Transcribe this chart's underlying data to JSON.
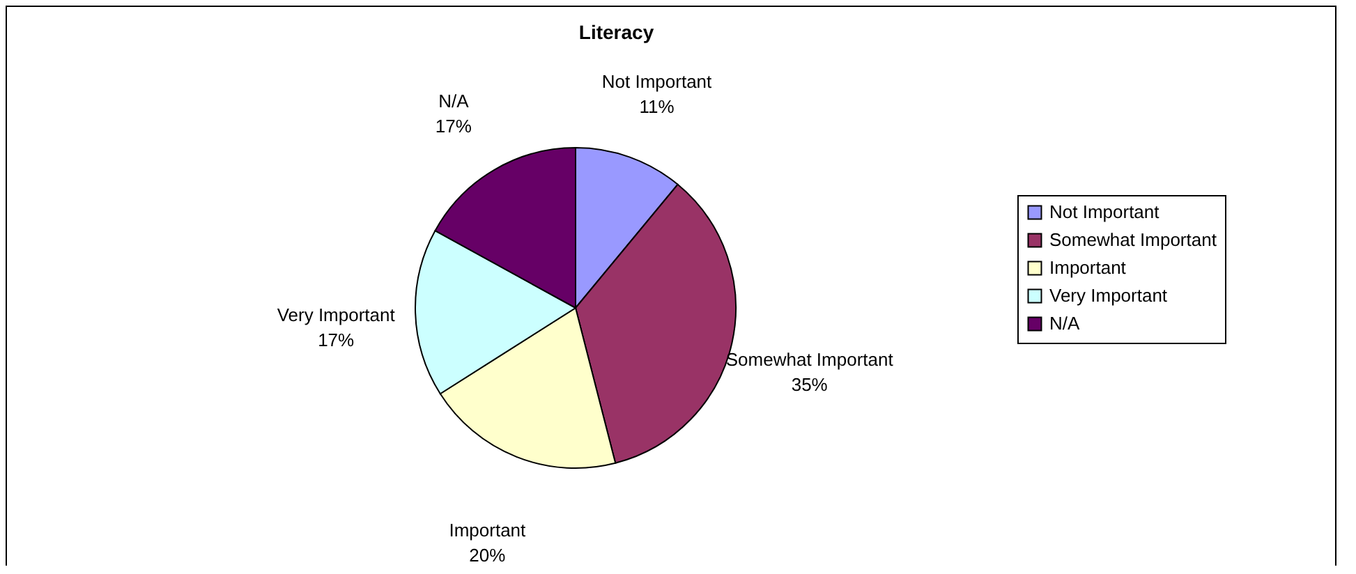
{
  "chart_data": {
    "type": "pie",
    "title": "Literacy",
    "categories": [
      "Not Important",
      "Somewhat Important",
      "Important",
      "Very Important",
      "N/A"
    ],
    "values": [
      11,
      35,
      20,
      17,
      17
    ],
    "value_labels": [
      "11%",
      "35%",
      "20%",
      "17%",
      "17%"
    ],
    "colors": [
      "#9999ff",
      "#993366",
      "#ffffcc",
      "#ccffff",
      "#660066"
    ],
    "legend": "right"
  }
}
